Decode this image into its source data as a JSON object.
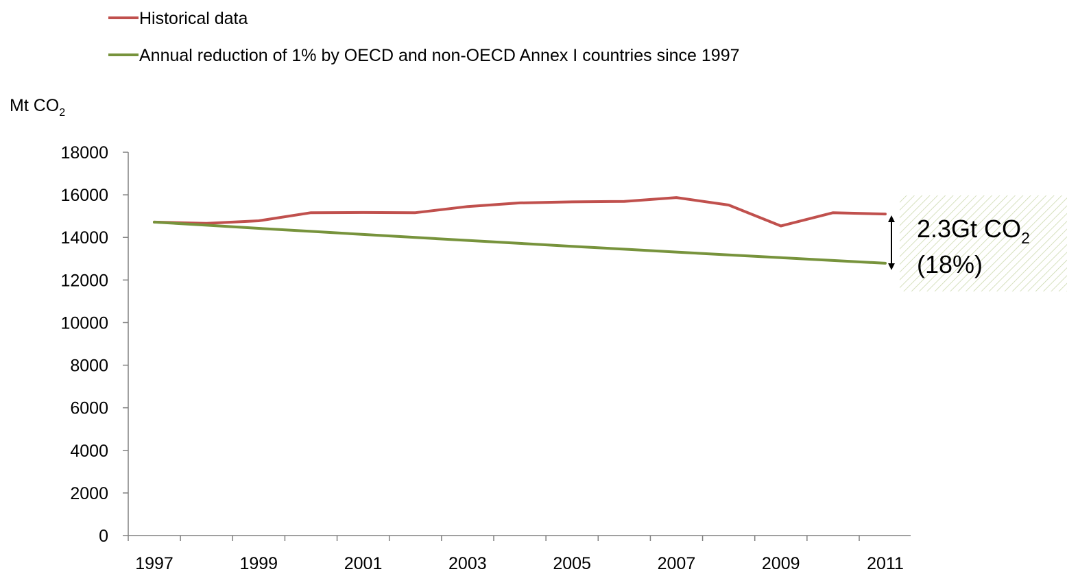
{
  "chart_data": {
    "type": "line",
    "x": [
      1997,
      1998,
      1999,
      2000,
      2001,
      2002,
      2003,
      2004,
      2005,
      2006,
      2007,
      2008,
      2009,
      2010,
      2011
    ],
    "x_tick_labels": [
      "1997",
      "1999",
      "2001",
      "2003",
      "2005",
      "2007",
      "2009",
      "2011"
    ],
    "y_ticks": [
      0,
      2000,
      4000,
      6000,
      8000,
      10000,
      12000,
      14000,
      16000,
      18000
    ],
    "ylim": [
      0,
      18000
    ],
    "y_unit": {
      "base": "Mt CO",
      "sub": "2"
    },
    "grid": false,
    "legend_position": "top-left",
    "series": [
      {
        "name": "Historical data",
        "color": "#c0504d",
        "values": [
          14720,
          14660,
          14780,
          15160,
          15170,
          15160,
          15450,
          15620,
          15670,
          15690,
          15870,
          15520,
          14540,
          15160,
          15100
        ]
      },
      {
        "name": "Annual reduction of 1% by OECD and non-OECD Annex I countries since 1997",
        "color": "#77933c",
        "values": [
          14720,
          14573,
          14427,
          14283,
          14140,
          13999,
          13859,
          13720,
          13583,
          13447,
          13313,
          13180,
          13048,
          12917,
          12788
        ]
      }
    ],
    "annotation": {
      "line1_base": "2.3Gt CO",
      "line1_sub": "2",
      "line2": "(18%)",
      "from_value": 15100,
      "to_value": 12788
    }
  }
}
